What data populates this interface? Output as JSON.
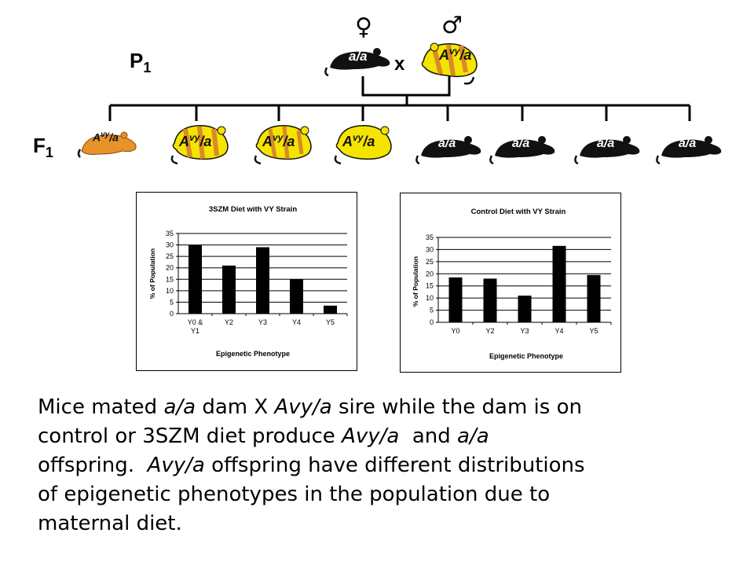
{
  "pedigree": {
    "p1_label": "P",
    "p1_sub": "1",
    "f1_label": "F",
    "f1_sub": "1",
    "cross_symbol": "x",
    "female_symbol": "♀",
    "male_symbol": "♂",
    "genotype_aa": "a/a",
    "genotype_avy_main": "A",
    "genotype_avy_sup": "vy",
    "genotype_avy_tail": "/a",
    "colors": {
      "black": "#111111",
      "yellow": "#f5e400",
      "orange": "#e8922a",
      "stripe": "#d98a2b"
    }
  },
  "chart_data": [
    {
      "type": "bar",
      "title": "3SZM Diet with VY Strain",
      "xlabel": "Epigenetic Phenotype",
      "ylabel": "% of Population",
      "categories": [
        "Y0 & Y1",
        "Y2",
        "Y3",
        "Y4",
        "Y5"
      ],
      "category_lines": [
        [
          "Y0 &",
          "Y1"
        ],
        [
          "Y2"
        ],
        [
          "Y3"
        ],
        [
          "Y4"
        ],
        [
          "Y5"
        ]
      ],
      "values": [
        30,
        21,
        29,
        15,
        3.5
      ],
      "ylim": [
        0,
        35
      ],
      "yticks": [
        "0",
        "5",
        "10",
        "15",
        "20",
        "25",
        "30",
        "35"
      ],
      "grid": true
    },
    {
      "type": "bar",
      "title": "Control Diet with VY Strain",
      "xlabel": "Epigenetic Phenotype",
      "ylabel": "% of Population",
      "categories": [
        "Y0",
        "Y2",
        "Y3",
        "Y4",
        "Y5"
      ],
      "category_lines": [
        [
          "Y0"
        ],
        [
          "Y2"
        ],
        [
          "Y3"
        ],
        [
          "Y4"
        ],
        [
          "Y5"
        ]
      ],
      "values": [
        18.5,
        18,
        11,
        31.5,
        19.5
      ],
      "ylim": [
        0,
        35
      ],
      "yticks": [
        "0",
        "5",
        "10",
        "15",
        "20",
        "25",
        "30",
        "35"
      ],
      "grid": true
    }
  ],
  "caption": {
    "l1_a": "Mice mated ",
    "l1_b": "a/a",
    "l1_c": " dam X ",
    "l1_d": "Avy/a",
    "l1_e": " sire while the dam is on",
    "l2_a": "control or 3SZM diet produce ",
    "l2_b": "Avy/a",
    "l2_c": "  and ",
    "l2_d": "a/a",
    "l3_a": "offspring.  ",
    "l3_b": "Avy/a",
    "l3_c": " offspring have different distributions",
    "l4": "of epigenetic phenotypes in the population due to",
    "l5": "maternal diet."
  }
}
